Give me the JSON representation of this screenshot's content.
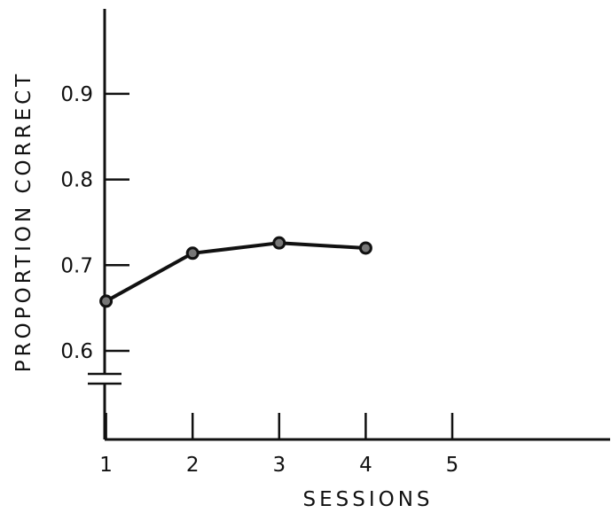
{
  "chart_data": {
    "type": "line",
    "title": "",
    "xlabel": "SESSIONS",
    "ylabel": "PROPORTION CORRECT",
    "x_ticks": [
      1,
      2,
      3,
      4,
      5
    ],
    "x_tick_labels": [
      "1",
      "2",
      "3",
      "4",
      "5"
    ],
    "y_ticks": [
      0.6,
      0.7,
      0.8,
      0.9
    ],
    "y_tick_labels": [
      "0.6",
      "0.7",
      "0.8",
      "0.9"
    ],
    "xlim": [
      0,
      5.8
    ],
    "ylim": [
      0.55,
      1.0
    ],
    "y_axis_break": true,
    "grid": false,
    "series": [
      {
        "x": [
          1,
          2,
          3,
          4
        ],
        "y": [
          0.658,
          0.714,
          0.726,
          0.72
        ]
      }
    ],
    "colors": {
      "ink": "#111111",
      "marker_fill": "#777777",
      "background": "#ffffff"
    }
  }
}
